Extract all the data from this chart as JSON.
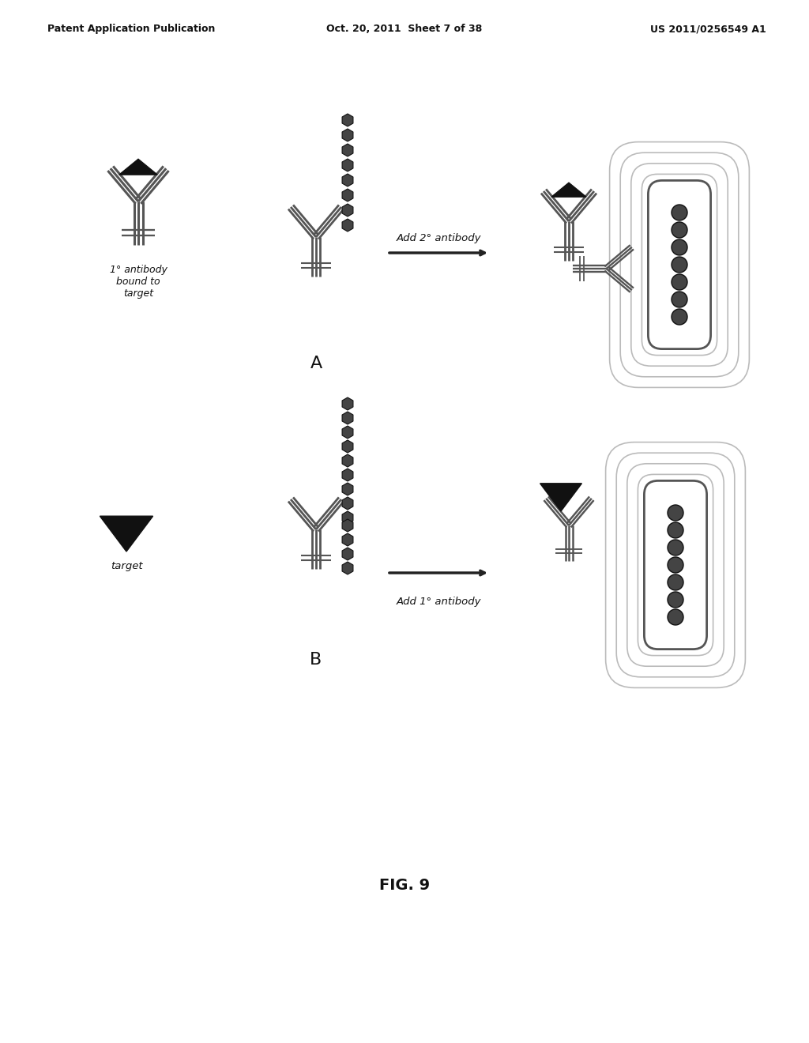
{
  "bg_color": "#ffffff",
  "header_left": "Patent Application Publication",
  "header_center": "Oct. 20, 2011  Sheet 7 of 38",
  "header_right": "US 2011/0256549 A1",
  "header_fontsize": 9,
  "label_A": "A",
  "label_B": "B",
  "fig_label": "FIG. 9",
  "text_1ab_antibody": "1° antibody\nbound to\ntarget",
  "text_add_2ab": "Add 2° antibody",
  "text_target": "target",
  "text_add_1ab": "Add 1° antibody",
  "dark_color": "#1a1a1a",
  "stripe_color": "#888888",
  "dot_color": "#333333",
  "halo_color": "#aaaaaa"
}
